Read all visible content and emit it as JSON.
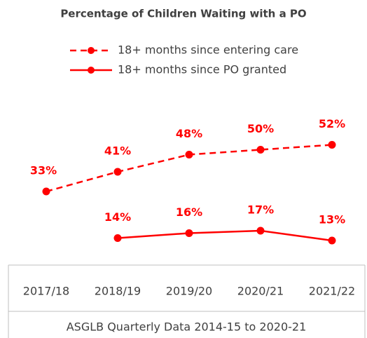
{
  "chart_data": {
    "type": "line",
    "title": "Percentage of Children Waiting with a PO",
    "categories": [
      "2017/18",
      "2018/19",
      "2019/20",
      "2020/21",
      "2021/22"
    ],
    "xlabel": "ASGLB Quarterly Data 2014-15 to 2020-21",
    "ylim": [
      0,
      100
    ],
    "series": [
      {
        "name": "18+ months since entering care",
        "color": "#ff0000",
        "line_style": "dashed",
        "values": [
          33,
          41,
          48,
          50,
          52
        ],
        "value_labels": [
          "33%",
          "41%",
          "48%",
          "50%",
          "52%"
        ]
      },
      {
        "name": "18+ months since PO granted",
        "color": "#ff0000",
        "line_style": "solid",
        "values": [
          null,
          14,
          16,
          17,
          13
        ],
        "value_labels": [
          null,
          "14%",
          "16%",
          "17%",
          "13%"
        ]
      }
    ]
  }
}
